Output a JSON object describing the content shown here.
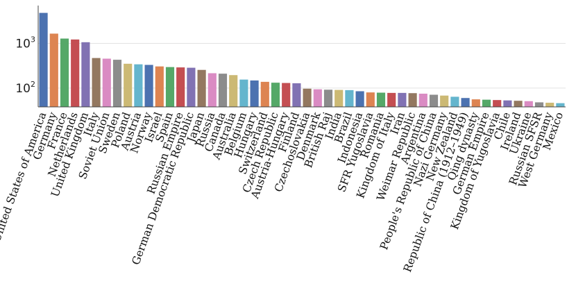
{
  "chart_data": {
    "type": "bar",
    "title": "",
    "xlabel": "",
    "ylabel": "",
    "yscale": "log",
    "ylim": [
      38,
      7000
    ],
    "grid": "y-major",
    "yticks": [
      {
        "value": 100,
        "base": "10",
        "exp": "2"
      },
      {
        "value": 1000,
        "base": "10",
        "exp": "3"
      }
    ],
    "palette": [
      "#4c72b0",
      "#dd8452",
      "#55a868",
      "#c44e52",
      "#8172b3",
      "#937860",
      "#da8bc3",
      "#8c8c8c",
      "#ccb974",
      "#64b5cd"
    ],
    "categories": [
      "United States of America",
      "Germany",
      "France",
      "Netherlands",
      "United Kingdom",
      "Italy",
      "Soviet Union",
      "Sweden",
      "Poland",
      "Austria",
      "Norway",
      "Israel",
      "Spain",
      "Russian Empire",
      "German Democratic Republic",
      "Japan",
      "Russia",
      "Canada",
      "Australia",
      "Belgium",
      "Hungary",
      "Switzerland",
      "Czech Republic",
      "Austria-Hungary",
      "Finland",
      "Czechoslovakia",
      "Denmark",
      "British Raj",
      "India",
      "Brazil",
      "Indonesia",
      "SFR Yugoslavia",
      "Romania",
      "Kingdom of Italy",
      "Iran",
      "Weimar Republic",
      "Argentina",
      "People's Republic of China",
      "Nazi Germany",
      "New Zealand",
      "Republic of China (1912–1949)",
      "Qing dynasty",
      "German Empire",
      "Kingdom of Yugoslavia",
      "Chile",
      "Ireland",
      "Ukraine",
      "Russian SFSR",
      "West Germany",
      "Mexico"
    ],
    "values": [
      4800,
      1650,
      1280,
      1220,
      1060,
      470,
      455,
      430,
      350,
      340,
      330,
      305,
      295,
      290,
      285,
      255,
      215,
      210,
      195,
      155,
      148,
      138,
      132,
      130,
      128,
      97,
      94,
      92,
      91,
      90,
      85,
      80,
      79,
      78,
      78,
      77,
      75,
      71,
      68,
      64,
      60,
      56,
      55,
      54,
      53,
      52,
      51,
      48,
      47,
      46
    ]
  }
}
